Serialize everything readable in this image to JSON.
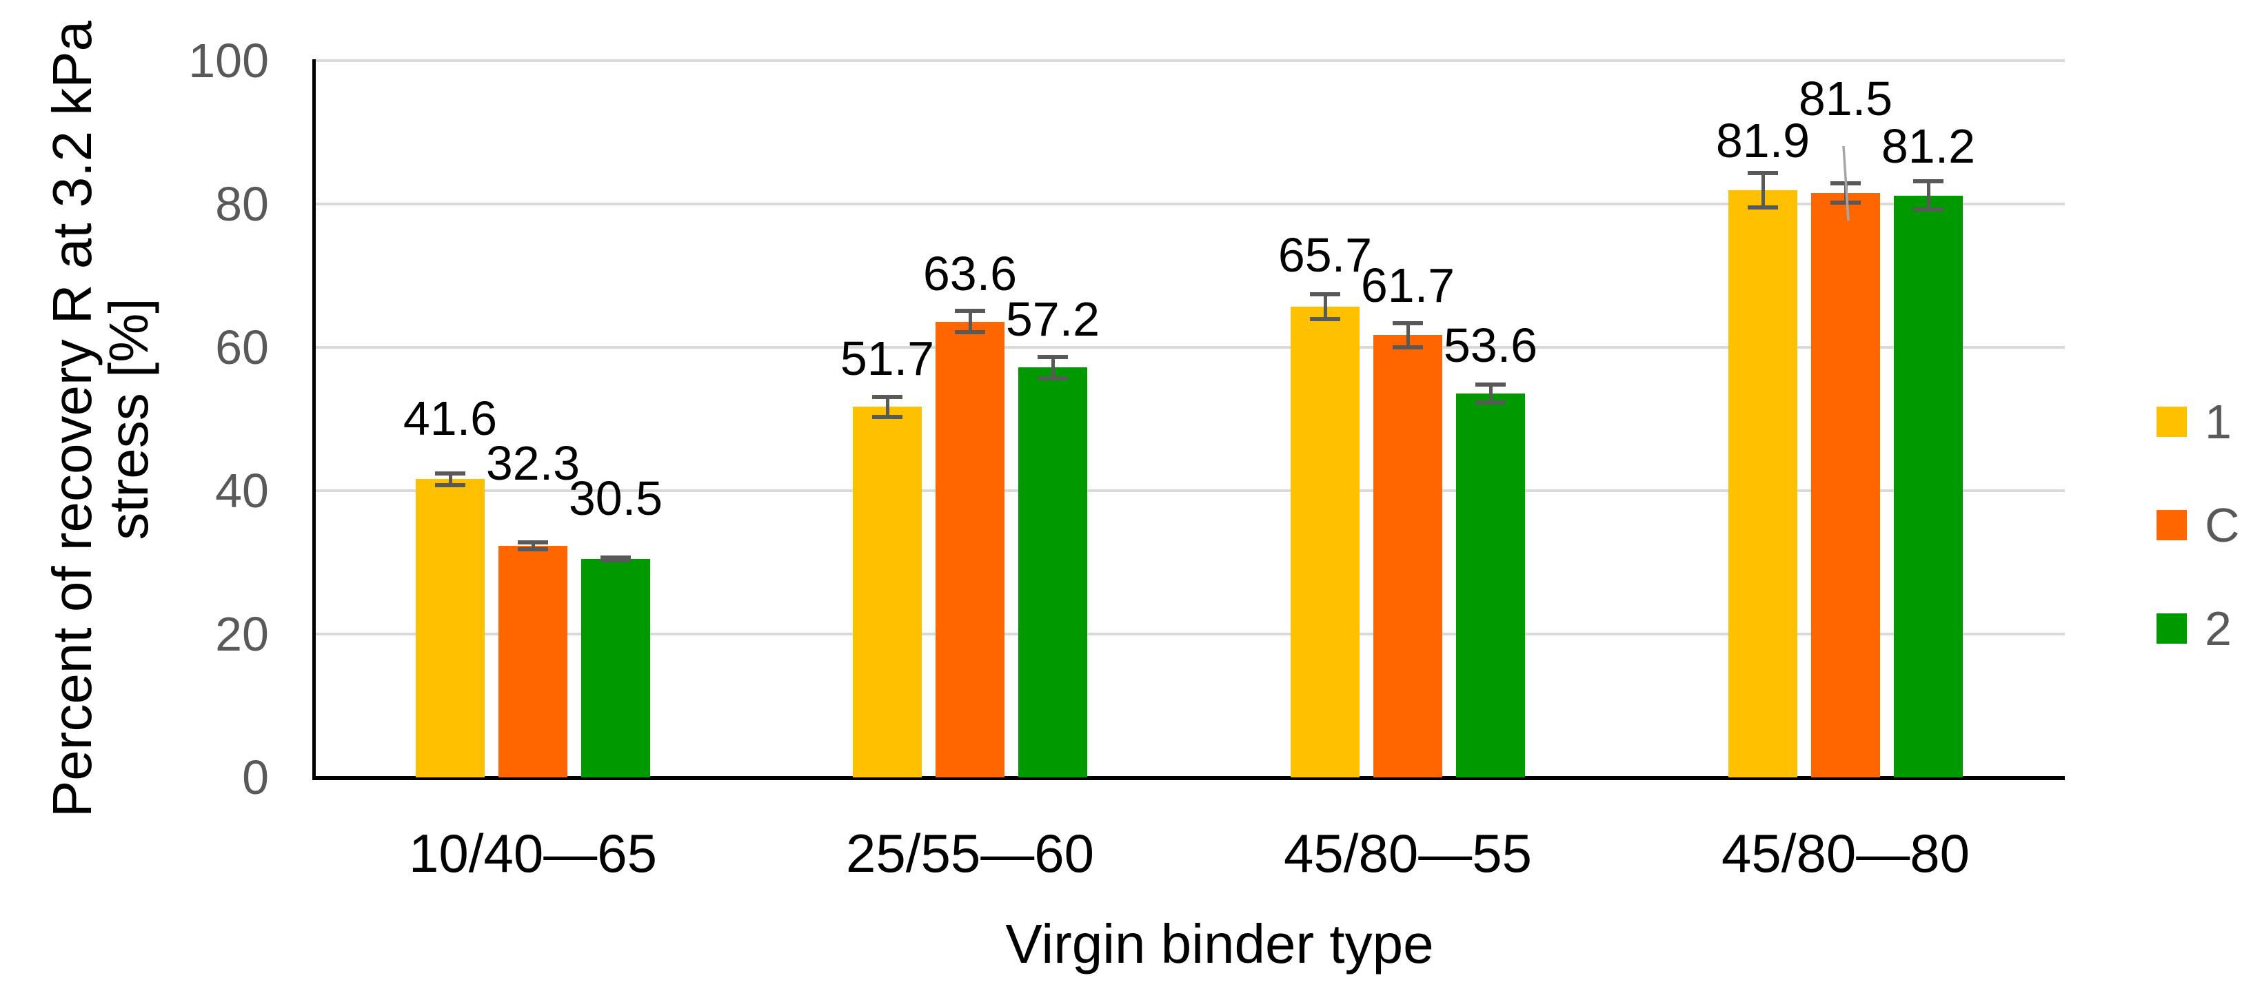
{
  "chart_data": {
    "type": "bar",
    "title": "",
    "categories": [
      "10/40—65",
      "25/55—60",
      "45/80—55",
      "45/80—80"
    ],
    "series": [
      {
        "name": "1",
        "color": "#FFC000",
        "values": [
          41.6,
          51.7,
          65.7,
          81.9
        ],
        "errors": [
          0.8,
          1.4,
          1.75,
          2.4
        ]
      },
      {
        "name": "C",
        "color": "#FF6600",
        "values": [
          32.3,
          63.6,
          61.7,
          81.5
        ],
        "errors": [
          0.5,
          1.5,
          1.7,
          1.35
        ]
      },
      {
        "name": "2",
        "color": "#009900",
        "values": [
          30.5,
          57.2,
          53.6,
          81.2
        ],
        "errors": [
          0.2,
          1.5,
          1.25,
          2.0
        ]
      }
    ],
    "xlabel": "Virgin binder type",
    "ylabel": "Percent of recovery R at 3.2 kPa stress [%]",
    "ylabel_lines": [
      "Percent of recovery R at 3.2 kPa",
      "stress [%]"
    ],
    "ylim": [
      0,
      100
    ],
    "yticks": [
      0,
      20,
      40,
      60,
      80,
      100
    ],
    "grid": "horizontal",
    "legend_position": "right",
    "legend_labels": [
      "1",
      "C",
      "2"
    ],
    "data_labels": "outside-end, one decimal",
    "error_bars": true,
    "callout": {
      "series_index": 1,
      "category_index": 3,
      "value_label": "81.5"
    },
    "colors": {
      "grid": "#D9D9D9",
      "axis": "#000000",
      "error_bar": "#595959",
      "tick_label": "#595959",
      "data_label": "#000000",
      "legend_label": "#595959",
      "callout_leader": "#A6A6A6"
    }
  }
}
